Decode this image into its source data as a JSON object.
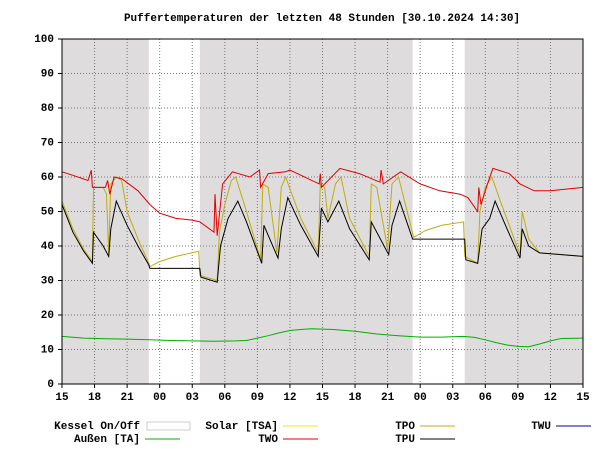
{
  "chart_data": {
    "type": "line",
    "title": "Puffertemperaturen der letzten 48 Stunden [30.10.2024 14:30]",
    "xlim": [
      0,
      48
    ],
    "xticks": [
      {
        "value": 0,
        "label": "15"
      },
      {
        "value": 3,
        "label": "18"
      },
      {
        "value": 6,
        "label": "21"
      },
      {
        "value": 9,
        "label": "00"
      },
      {
        "value": 12,
        "label": "03"
      },
      {
        "value": 15,
        "label": "06"
      },
      {
        "value": 18,
        "label": "09"
      },
      {
        "value": 21,
        "label": "12"
      },
      {
        "value": 24,
        "label": "15"
      },
      {
        "value": 27,
        "label": "18"
      },
      {
        "value": 30,
        "label": "21"
      },
      {
        "value": 33,
        "label": "00"
      },
      {
        "value": 36,
        "label": "03"
      },
      {
        "value": 39,
        "label": "06"
      },
      {
        "value": 42,
        "label": "09"
      },
      {
        "value": 45,
        "label": "12"
      },
      {
        "value": 48,
        "label": "15"
      }
    ],
    "ylim": [
      0,
      100
    ],
    "yticks": [
      0,
      10,
      20,
      30,
      40,
      50,
      60,
      70,
      80,
      90,
      100
    ],
    "grid": true,
    "series": [
      {
        "name": "Kessel On/Off",
        "color": "#dedcdc",
        "periods": [
          [
            0,
            8
          ],
          [
            12.7,
            32.3
          ],
          [
            37.1,
            48
          ]
        ]
      },
      {
        "name": "Solar  [TSA]",
        "color": "#e8e820"
      },
      {
        "name": "TPO",
        "color": "#c0ac10",
        "x": [
          0,
          1,
          2,
          2.8,
          2.9,
          3.8,
          4.1,
          4.3,
          4.5,
          5.0,
          5.5,
          6,
          7,
          8,
          8.1,
          9,
          10.5,
          12.6,
          12.7,
          14.3,
          14.5,
          15,
          15.6,
          16,
          17,
          18.3,
          18.5,
          19,
          19.8,
          20.2,
          20.6,
          22,
          23.6,
          23.8,
          24.2,
          24.5,
          25.2,
          25.7,
          26.5,
          28.3,
          28.5,
          29,
          30,
          30.4,
          31,
          32.2,
          32.4,
          33.5,
          35,
          37,
          37.1,
          38.3,
          38.5,
          39,
          39.6,
          40.5,
          42.2,
          42.4,
          43,
          44,
          46,
          48
        ],
        "values": [
          53,
          45,
          39,
          35.5,
          57,
          57,
          55,
          38,
          58,
          60,
          59,
          50,
          42,
          35,
          34,
          35.5,
          37,
          38.5,
          31.5,
          30,
          44,
          52,
          59,
          60,
          50,
          36,
          58,
          57,
          38,
          57,
          60,
          48,
          38,
          58,
          57,
          48,
          58,
          60,
          48,
          37,
          58,
          57,
          39,
          58,
          60,
          45,
          42.5,
          44.5,
          46,
          47,
          37,
          35,
          50,
          57,
          60,
          52,
          37.5,
          50,
          42,
          38,
          37.5,
          37
        ]
      },
      {
        "name": "TWU",
        "color": "#0000a0"
      },
      {
        "name": "Außen  [TA]",
        "color": "#00b000",
        "x": [
          0,
          2,
          4,
          6,
          8,
          10,
          12,
          14,
          16,
          17,
          18,
          19,
          20,
          21,
          22,
          23,
          25,
          27,
          29,
          31,
          33,
          35,
          37,
          38,
          39,
          40,
          41,
          42,
          43,
          44,
          45,
          46,
          48
        ],
        "values": [
          13.8,
          13.3,
          13.1,
          13,
          12.8,
          12.6,
          12.5,
          12.4,
          12.5,
          12.6,
          13.3,
          14,
          14.8,
          15.5,
          15.8,
          16,
          15.8,
          15.3,
          14.5,
          14,
          13.6,
          13.6,
          13.8,
          13.5,
          12.8,
          12,
          11.3,
          10.9,
          10.8,
          11.6,
          12.5,
          13.2,
          13.3
        ]
      },
      {
        "name": "TWO",
        "color": "#e00000",
        "x": [
          0,
          1,
          2.4,
          2.7,
          2.8,
          4,
          4.2,
          4.4,
          4.8,
          5.5,
          7,
          8.1,
          9,
          10.5,
          12,
          12.7,
          14,
          14.1,
          14.3,
          14.8,
          15.7,
          17.3,
          18.2,
          18.3,
          19,
          20.6,
          21,
          23.7,
          23.8,
          23.9,
          25.6,
          27.4,
          29.3,
          29.4,
          29.6,
          31.2,
          33,
          34.8,
          36.7,
          37.4,
          38.3,
          38.4,
          38.6,
          39.2,
          39.7,
          41.2,
          42.2,
          43.5,
          45,
          48
        ],
        "values": [
          61.5,
          60.5,
          59,
          62,
          57,
          57,
          59,
          55,
          60,
          59.5,
          56,
          52,
          49.5,
          48,
          47.5,
          47,
          44,
          55,
          43,
          58,
          61.5,
          60,
          62,
          57,
          61,
          61.5,
          62,
          58,
          61,
          57,
          62.5,
          61,
          58.5,
          62,
          58,
          61.5,
          58,
          56,
          55,
          54,
          50,
          57,
          52,
          58,
          62.5,
          61,
          58,
          56,
          56,
          57
        ]
      },
      {
        "name": "TPU",
        "color": "#000000",
        "x": [
          0,
          1,
          2,
          2.8,
          2.9,
          3.8,
          4.3,
          4.5,
          5.0,
          6,
          7,
          8,
          8.1,
          12.7,
          12.8,
          14.3,
          14.6,
          15.3,
          16.2,
          17,
          18.4,
          18.6,
          19.9,
          20.2,
          20.8,
          22,
          23.6,
          23.9,
          24.5,
          25.5,
          26.5,
          28.3,
          28.5,
          30.1,
          30.4,
          31.1,
          32.2,
          32.3,
          37.1,
          37.2,
          38.3,
          38.7,
          39.4,
          39.9,
          41,
          42.2,
          42.4,
          43,
          44,
          46,
          48
        ],
        "values": [
          52,
          44,
          38.5,
          35,
          44,
          40,
          37,
          45,
          53,
          46,
          40,
          34.5,
          33.5,
          33.5,
          31,
          29.5,
          40,
          48,
          53,
          47,
          35,
          46,
          36.5,
          45,
          54,
          46,
          37,
          51,
          47,
          53,
          45,
          36,
          47,
          37.5,
          46,
          53,
          43,
          42,
          42,
          36,
          35,
          45,
          48,
          53,
          45,
          36.5,
          45,
          40,
          38,
          37.5,
          37
        ]
      }
    ]
  }
}
